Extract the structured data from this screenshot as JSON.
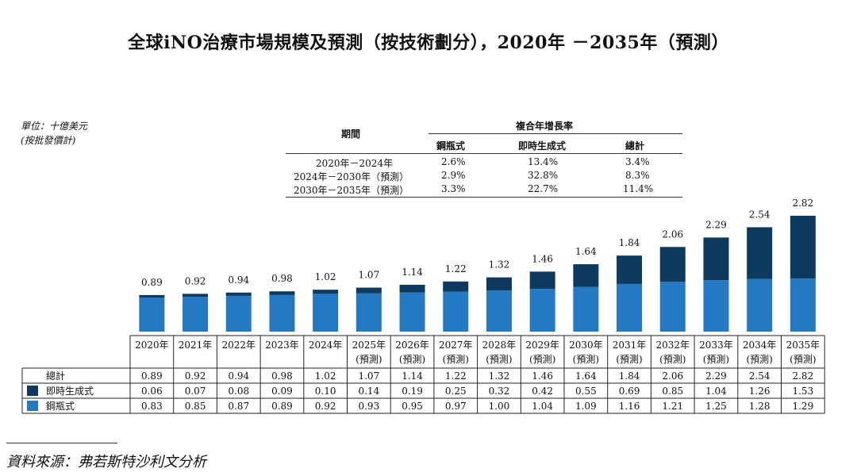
{
  "title": "全球iNO治療市場規模及預測（按技術劃分），2020年 －2035年（預測）",
  "unit_lines": [
    "單位：十億美元",
    "(按批發價計)"
  ],
  "cagr_table": {
    "period_header": "期間",
    "group_header": "複合年增長率",
    "columns": [
      "鋼瓶式",
      "即時生成式",
      "總計"
    ],
    "rows": [
      {
        "period": "2020年－2024年",
        "values": [
          "2.6%",
          "13.4%",
          "3.4%"
        ]
      },
      {
        "period": "2024年－2030年（預測）",
        "values": [
          "2.9%",
          "32.8%",
          "8.3%"
        ]
      },
      {
        "period": "2030年－2035年（預測）",
        "values": [
          "3.3%",
          "22.7%",
          "11.4%"
        ]
      }
    ]
  },
  "chart_data": {
    "type": "bar",
    "stacked": true,
    "categories": [
      "2020年",
      "2021年",
      "2022年",
      "2023年",
      "2024年",
      "2025年",
      "2026年",
      "2027年",
      "2028年",
      "2029年",
      "2030年",
      "2031年",
      "2032年",
      "2033年",
      "2034年",
      "2035年"
    ],
    "category_sublabels": [
      "",
      "",
      "",
      "",
      "",
      "(預測)",
      "(預測)",
      "(預測)",
      "(預測)",
      "(預測)",
      "(預測)",
      "(預測)",
      "(預測)",
      "(預測)",
      "(預測)",
      "(預測)"
    ],
    "series": [
      {
        "name": "鋼瓶式",
        "color": "#2379c4",
        "values": [
          0.83,
          0.85,
          0.87,
          0.89,
          0.92,
          0.93,
          0.95,
          0.97,
          1.0,
          1.04,
          1.09,
          1.16,
          1.21,
          1.25,
          1.28,
          1.29
        ]
      },
      {
        "name": "即時生成式",
        "color": "#0d3a5e",
        "values": [
          0.06,
          0.07,
          0.08,
          0.09,
          0.1,
          0.14,
          0.19,
          0.25,
          0.32,
          0.42,
          0.55,
          0.69,
          0.85,
          1.04,
          1.26,
          1.53
        ]
      }
    ],
    "totals_label": "總計",
    "totals": [
      0.89,
      0.92,
      0.94,
      0.98,
      1.02,
      1.07,
      1.14,
      1.22,
      1.32,
      1.46,
      1.64,
      1.84,
      2.06,
      2.29,
      2.54,
      2.82
    ],
    "ylim": [
      0,
      3.0
    ],
    "grid": false
  },
  "source": "資料來源：弗若斯特沙利文分析"
}
